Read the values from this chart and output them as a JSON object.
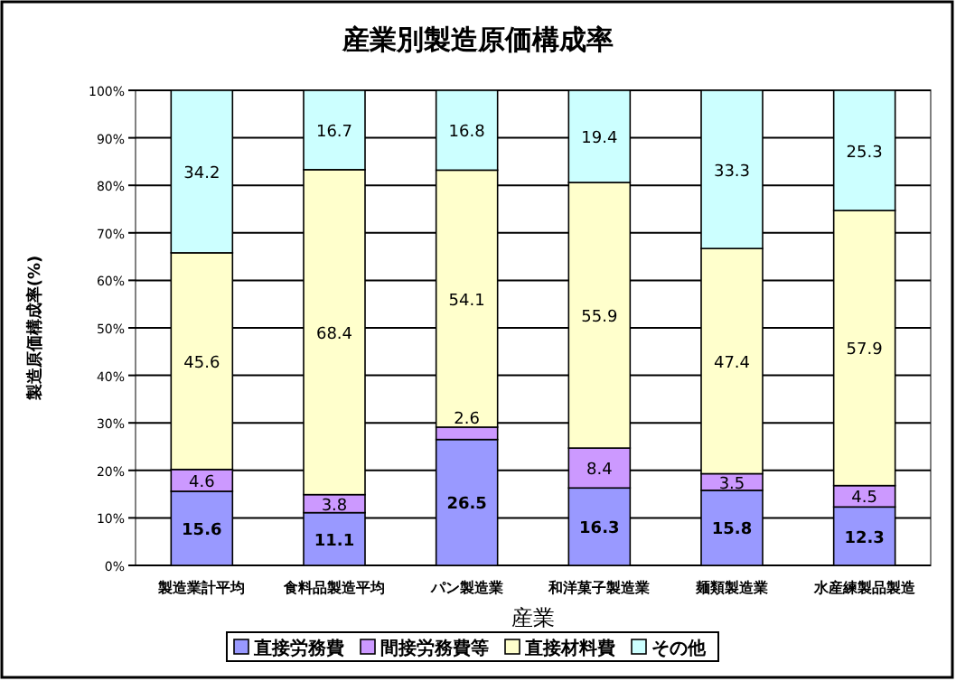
{
  "chart_data": {
    "type": "bar",
    "stacked": true,
    "title": "産業別製造原価構成率",
    "xlabel": "産業",
    "ylabel": "製造原価構成率(%)",
    "categories": [
      "製造業計平均",
      "食料品製造平均",
      "パン製造業",
      "和洋菓子製造業",
      "麺類製造業",
      "水産練製品製造"
    ],
    "series": [
      {
        "name": "直接労務費",
        "color": "#9999ff",
        "values": [
          15.6,
          11.1,
          26.5,
          16.3,
          15.8,
          12.3
        ]
      },
      {
        "name": "間接労務費等",
        "color": "#cc99ff",
        "values": [
          4.6,
          3.8,
          2.6,
          8.4,
          3.5,
          4.5
        ]
      },
      {
        "name": "直接材料費",
        "color": "#ffffcc",
        "values": [
          45.6,
          68.4,
          54.1,
          55.9,
          47.4,
          57.9
        ]
      },
      {
        "name": "その他",
        "color": "#ccffff",
        "values": [
          34.2,
          16.7,
          16.8,
          19.4,
          33.3,
          25.3
        ]
      }
    ],
    "ylim": [
      0,
      100
    ],
    "yticks": [
      {
        "value": 0,
        "label": "0%"
      },
      {
        "value": 10,
        "label": "10%"
      },
      {
        "value": 20,
        "label": "20%"
      },
      {
        "value": 30,
        "label": "30%"
      },
      {
        "value": 40,
        "label": "40%"
      },
      {
        "value": 50,
        "label": "50%"
      },
      {
        "value": 60,
        "label": "60%"
      },
      {
        "value": 70,
        "label": "70%"
      },
      {
        "value": 80,
        "label": "80%"
      },
      {
        "value": 90,
        "label": "90%"
      },
      {
        "value": 100,
        "label": "100%"
      }
    ],
    "grid": "y",
    "legend": "bottom",
    "data_labels": true
  }
}
